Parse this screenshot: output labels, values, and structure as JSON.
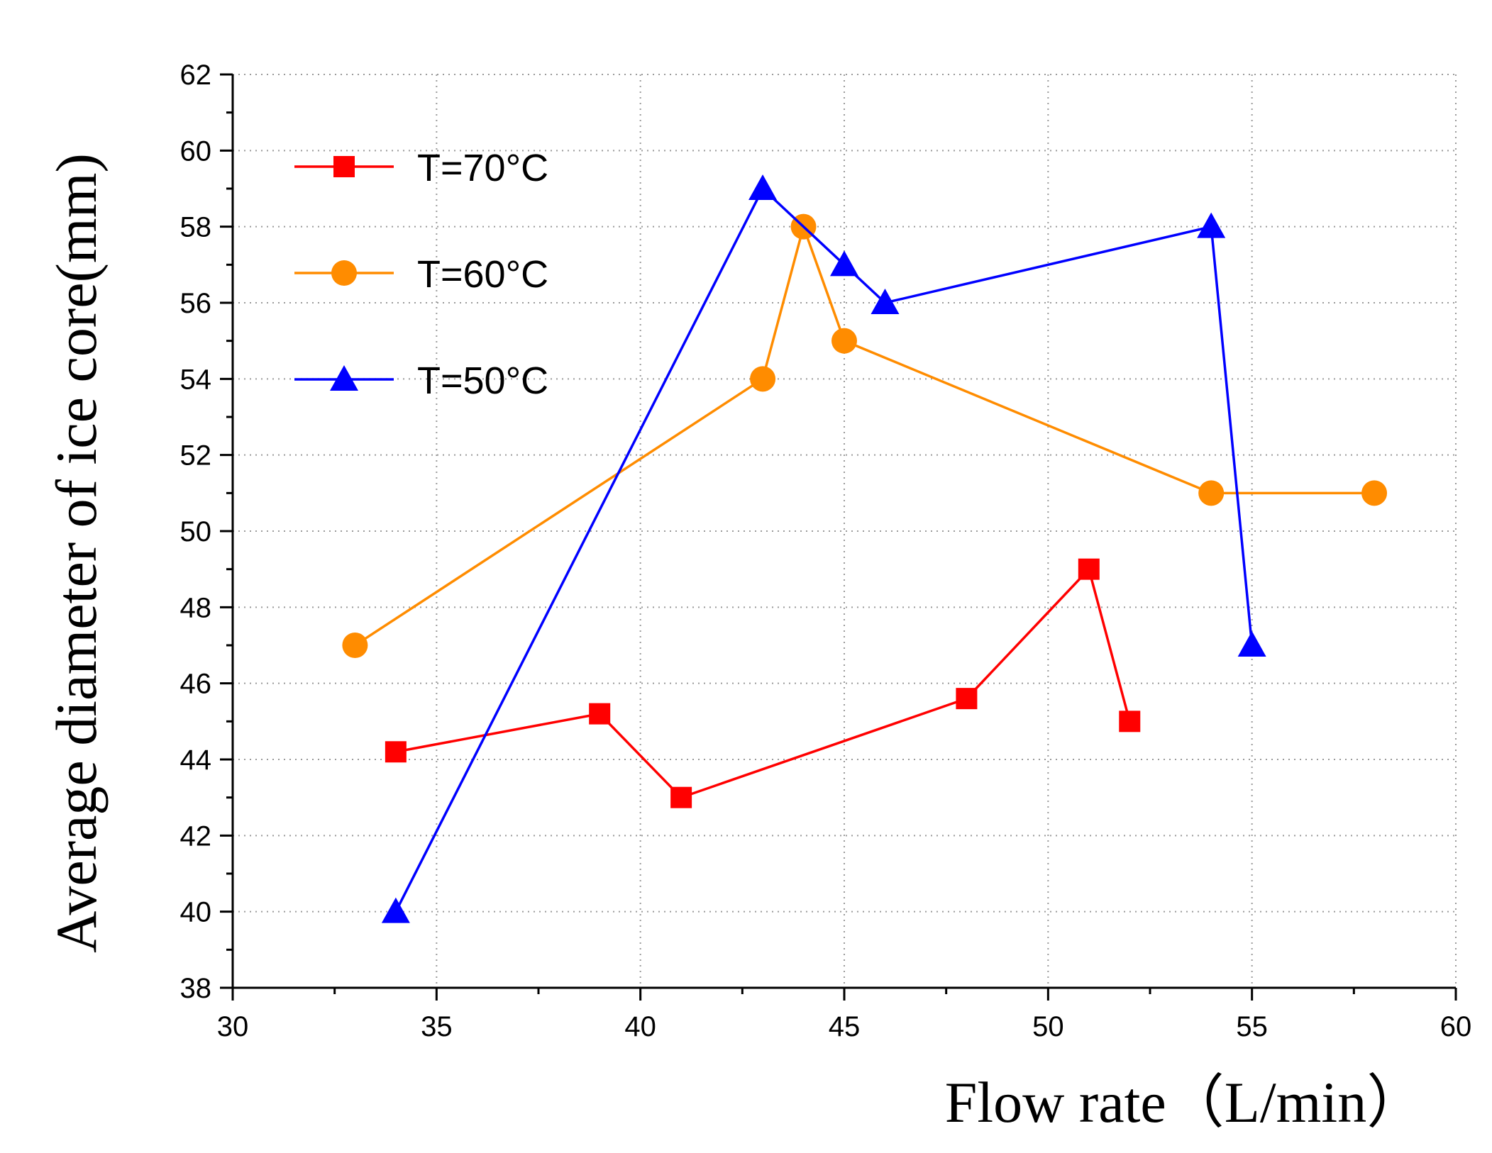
{
  "chart_data": {
    "type": "line",
    "xlabel": "Flow rate（L/min）",
    "ylabel": "Average diameter of ice core(mm)",
    "xlim": [
      30,
      60
    ],
    "ylim": [
      38,
      62
    ],
    "xticks": [
      30,
      35,
      40,
      45,
      50,
      55,
      60
    ],
    "yticks": [
      38,
      40,
      42,
      44,
      46,
      48,
      50,
      52,
      54,
      56,
      58,
      60,
      62
    ],
    "grid": true,
    "legend_position": "top-left",
    "series": [
      {
        "name": "T=70°C",
        "color": "#ff0000",
        "marker": "square",
        "x": [
          34,
          39,
          41,
          48,
          51,
          52
        ],
        "y": [
          44.2,
          45.2,
          43,
          45.6,
          49,
          45
        ]
      },
      {
        "name": "T=60°C",
        "color": "#ff8c00",
        "marker": "circle",
        "x": [
          33,
          43,
          44,
          45,
          54,
          58
        ],
        "y": [
          47,
          54,
          58,
          55,
          51,
          51
        ]
      },
      {
        "name": "T=50°C",
        "color": "#0000ff",
        "marker": "triangle",
        "x": [
          34,
          43,
          45,
          46,
          54,
          55
        ],
        "y": [
          40,
          59,
          57,
          56,
          58,
          47
        ]
      }
    ]
  }
}
